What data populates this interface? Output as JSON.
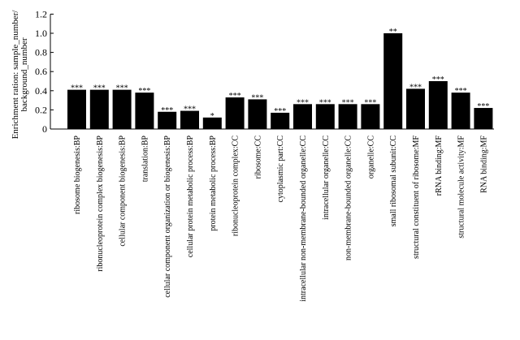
{
  "chart_data": {
    "type": "bar",
    "title": "",
    "xlabel": "",
    "ylabel_lines": [
      "Enrichment ration: sample_number/",
      "background_number"
    ],
    "ylim": [
      0,
      1.2
    ],
    "yticks": [
      0,
      0.2,
      0.4,
      0.6,
      0.8,
      1.0,
      1.2
    ],
    "ytick_labels": [
      "0",
      "0.2",
      "0.4",
      "0.6",
      "0.8",
      "1.0",
      "1.2"
    ],
    "grid": false,
    "bar_color": "#000000",
    "categories": [
      "ribosome biogenesis:BP",
      "ribonucleoprotein complex biogenesis:BP",
      "cellular component biogenesis:BP",
      "translation:BP",
      "cellular component organization or biogenesis:BP",
      "cellular protein metabolic process:BP",
      "protein metabolic process:BP",
      "ribonucleoprotein complex:CC",
      "ribosome:CC",
      "cytoplasmic part:CC",
      "intracellular non-membrane-bounded organelle:CC",
      "intracellular organelle:CC",
      "non-membrane-bounded organelle:CC",
      "organelle:CC",
      "small ribosomal subunit:CC",
      "structural constituent of ribosome:MF",
      "rRNA binding:MF",
      "structural molecule activity:MF",
      "RNA binding:MF"
    ],
    "values": [
      0.41,
      0.41,
      0.41,
      0.38,
      0.18,
      0.19,
      0.12,
      0.33,
      0.31,
      0.17,
      0.26,
      0.26,
      0.26,
      0.26,
      1.0,
      0.42,
      0.5,
      0.38,
      0.22
    ],
    "annotations": [
      "***",
      "***",
      "***",
      "***",
      "***",
      "***",
      "*",
      "***",
      "***",
      "***",
      "***",
      "***",
      "***",
      "***",
      "**",
      "***",
      "***",
      "***",
      "***"
    ]
  }
}
